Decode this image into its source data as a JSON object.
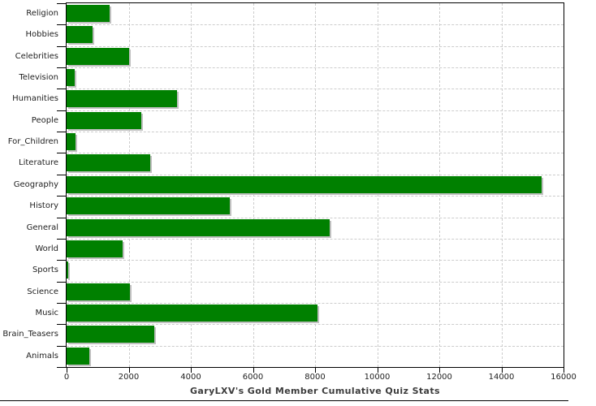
{
  "chart_data": {
    "type": "bar",
    "orientation": "horizontal",
    "title": "GaryLXV's Gold Member Cumulative Quiz Stats",
    "categories": [
      "Religion",
      "Hobbies",
      "Celebrities",
      "Television",
      "Humanities",
      "People",
      "For_Children",
      "Literature",
      "Geography",
      "History",
      "General",
      "World",
      "Sports",
      "Science",
      "Music",
      "Brain_Teasers",
      "Animals"
    ],
    "values": [
      1380,
      840,
      2010,
      260,
      3560,
      2400,
      280,
      2690,
      15290,
      5260,
      8470,
      1815,
      65,
      2030,
      8080,
      2815,
      730
    ],
    "xlabel": "",
    "ylabel": "",
    "xlim": [
      0,
      16000
    ],
    "x_ticks": [
      0,
      2000,
      4000,
      6000,
      8000,
      10000,
      12000,
      14000,
      16000
    ],
    "grid": "dashed, vertical at x ticks and horizontal at category boundaries",
    "legend": "none",
    "colors": {
      "bar": "#008000",
      "bar_shadow": "#c0c0c0",
      "grid": "#cccccc",
      "axis": "#000000",
      "tick_label": "#222222",
      "title": "#3c3c3c",
      "background": "#ffffff"
    }
  }
}
